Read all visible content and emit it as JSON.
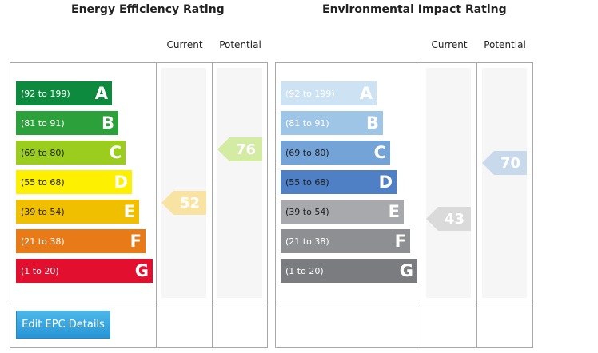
{
  "energy": {
    "title": "Energy Efficiency Rating",
    "current_label": "Current",
    "potential_label": "Potential",
    "bands": [
      {
        "letter": "A",
        "range": "(92 to 199)",
        "color": "#0e8a3e",
        "text_color": "#ffffff"
      },
      {
        "letter": "B",
        "range": "(81 to 91)",
        "color": "#2ca03a",
        "text_color": "#ffffff"
      },
      {
        "letter": "C",
        "range": "(69 to 80)",
        "color": "#9acd1e",
        "text_color": "#222222"
      },
      {
        "letter": "D",
        "range": "(55 to 68)",
        "color": "#fdf000",
        "text_color": "#222222"
      },
      {
        "letter": "E",
        "range": "(39 to 54)",
        "color": "#f0bf00",
        "text_color": "#222222"
      },
      {
        "letter": "F",
        "range": "(21 to 38)",
        "color": "#e97a18",
        "text_color": "#ffffff"
      },
      {
        "letter": "G",
        "range": "(1 to 20)",
        "color": "#e2102e",
        "text_color": "#ffffff"
      }
    ],
    "current": {
      "value": "52",
      "color": "#f8e3a2"
    },
    "potential": {
      "value": "76",
      "color": "#d4eba4"
    }
  },
  "environmental": {
    "title": "Environmental Impact Rating",
    "current_label": "Current",
    "potential_label": "Potential",
    "bands": [
      {
        "letter": "A",
        "range": "(92 to 199)",
        "color": "#cde2f2",
        "text_color": "#ffffff"
      },
      {
        "letter": "B",
        "range": "(81 to 91)",
        "color": "#9ec4e6",
        "text_color": "#ffffff"
      },
      {
        "letter": "C",
        "range": "(69 to 80)",
        "color": "#74a4d7",
        "text_color": "#222222"
      },
      {
        "letter": "D",
        "range": "(55 to 68)",
        "color": "#4f7fc4",
        "text_color": "#222222"
      },
      {
        "letter": "E",
        "range": "(39 to 54)",
        "color": "#a8a9ac",
        "text_color": "#222222"
      },
      {
        "letter": "F",
        "range": "(21 to 38)",
        "color": "#8e8f92",
        "text_color": "#ffffff"
      },
      {
        "letter": "G",
        "range": "(1 to 20)",
        "color": "#7b7c80",
        "text_color": "#ffffff"
      }
    ],
    "current": {
      "value": "43",
      "color": "#dadadb"
    },
    "potential": {
      "value": "70",
      "color": "#c8d9ec"
    }
  },
  "edit_button": {
    "label": "Edit EPC Details"
  }
}
